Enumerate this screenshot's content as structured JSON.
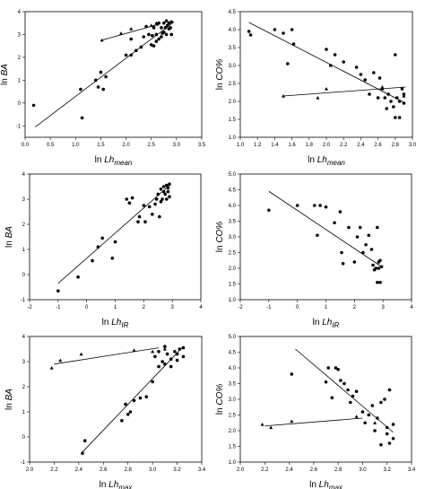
{
  "chart_data": [
    {
      "type": "scatter",
      "xlabel": "ln Lhmean",
      "xlabel_parts": {
        "main": "ln ",
        "italic": "Lh",
        "sub": "mean"
      },
      "ylabel": "ln BA",
      "ylabel_parts": {
        "main": "ln ",
        "italic": "BA"
      },
      "xlim": [
        0.0,
        3.5
      ],
      "ylim": [
        -1.5,
        4.0
      ],
      "xticks": [
        "0.0",
        "0.5",
        "1.0",
        "1.5",
        "2.0",
        "2.5",
        "3.0",
        "3.5"
      ],
      "yticks": [
        "-1",
        "0",
        "1",
        "2",
        "3",
        "4"
      ],
      "ytick_values": [
        -1,
        0,
        1,
        2,
        3,
        4
      ],
      "series": [
        {
          "marker": "circle",
          "x": [
            0.17,
            1.1,
            1.13,
            1.4,
            1.45,
            1.5,
            1.55,
            1.6,
            2.0,
            2.1,
            2.1,
            2.2,
            2.3,
            2.35,
            2.4,
            2.45,
            2.5,
            2.52,
            2.55,
            2.55,
            2.6,
            2.6,
            2.62,
            2.65,
            2.65,
            2.7,
            2.7,
            2.72,
            2.75,
            2.75,
            2.78,
            2.8,
            2.8,
            2.82,
            2.85,
            2.85,
            2.88,
            2.9,
            2.9
          ],
          "y": [
            -0.1,
            0.6,
            -0.65,
            1.0,
            0.7,
            1.35,
            0.6,
            1.15,
            2.1,
            2.8,
            2.1,
            2.3,
            2.45,
            2.9,
            3.35,
            3.0,
            2.55,
            2.95,
            2.5,
            3.3,
            2.7,
            3.0,
            3.45,
            2.8,
            3.5,
            2.9,
            3.3,
            3.05,
            3.1,
            3.5,
            3.3,
            3.0,
            3.6,
            3.4,
            3.25,
            3.5,
            3.3,
            3.0,
            3.55
          ]
        },
        {
          "marker": "triangle",
          "x": [
            1.52,
            1.9,
            2.1,
            2.5,
            2.55,
            2.6
          ],
          "y": [
            2.75,
            3.05,
            3.25,
            3.4,
            3.35,
            3.5
          ]
        }
      ],
      "fit_lines": [
        {
          "x": [
            0.2,
            2.95
          ],
          "y": [
            -1.05,
            3.55
          ]
        },
        {
          "x": [
            1.52,
            2.65
          ],
          "y": [
            2.75,
            3.45
          ]
        }
      ]
    },
    {
      "type": "scatter",
      "xlabel": "ln Lhmean",
      "xlabel_parts": {
        "main": "ln ",
        "italic": "Lh",
        "sub": "mean"
      },
      "ylabel": "ln CO%",
      "ylabel_parts": {
        "main": "ln ",
        "italic": "CO%"
      },
      "xlim": [
        1.0,
        3.0
      ],
      "ylim": [
        1.0,
        4.5
      ],
      "xticks": [
        "1.0",
        "1.2",
        "1.4",
        "1.6",
        "1.8",
        "2.0",
        "2.2",
        "2.4",
        "2.6",
        "2.8",
        "3.0"
      ],
      "yticks": [
        "1.0",
        "1.5",
        "2.0",
        "2.5",
        "3.0",
        "3.5",
        "4.0",
        "4.5"
      ],
      "ytick_values": [
        1.0,
        1.5,
        2.0,
        2.5,
        3.0,
        3.5,
        4.0,
        4.5
      ],
      "series": [
        {
          "marker": "circle",
          "x": [
            1.1,
            1.12,
            1.4,
            1.5,
            1.55,
            1.6,
            1.62,
            2.0,
            2.05,
            2.1,
            2.2,
            2.35,
            2.4,
            2.45,
            2.5,
            2.55,
            2.6,
            2.62,
            2.65,
            2.68,
            2.7,
            2.72,
            2.75,
            2.78,
            2.8,
            2.8,
            2.82,
            2.85,
            2.85,
            2.88,
            2.9,
            2.9
          ],
          "y": [
            3.95,
            3.85,
            4.0,
            3.9,
            3.05,
            4.0,
            3.6,
            3.45,
            3.0,
            3.3,
            3.1,
            2.95,
            2.75,
            2.6,
            2.2,
            2.8,
            2.1,
            2.65,
            2.35,
            2.1,
            1.8,
            2.2,
            2.0,
            1.85,
            3.3,
            1.55,
            2.1,
            2.0,
            1.55,
            2.35,
            2.2,
            1.95
          ]
        },
        {
          "marker": "triangle",
          "x": [
            1.5,
            1.9,
            2.0,
            2.65,
            2.9
          ],
          "y": [
            2.15,
            2.1,
            2.35,
            2.4,
            2.15
          ]
        }
      ],
      "fit_lines": [
        {
          "x": [
            1.1,
            2.92
          ],
          "y": [
            4.2,
            1.95
          ]
        },
        {
          "x": [
            1.5,
            2.92
          ],
          "y": [
            2.15,
            2.4
          ]
        }
      ]
    },
    {
      "type": "scatter",
      "xlabel": "ln LhIR",
      "xlabel_parts": {
        "main": "ln ",
        "italic": "Lh",
        "sub": "IR"
      },
      "ylabel": "ln BA",
      "ylabel_parts": {
        "main": "ln ",
        "italic": "BA"
      },
      "xlim": [
        -2,
        4
      ],
      "ylim": [
        -1,
        4
      ],
      "xticks": [
        "-2",
        "-1",
        "0",
        "1",
        "2",
        "3",
        "4"
      ],
      "yticks": [
        "-1",
        "0",
        "1",
        "2",
        "3",
        "4"
      ],
      "ytick_values": [
        -1,
        0,
        1,
        2,
        3,
        4
      ],
      "series": [
        {
          "marker": "circle",
          "x": [
            -1.0,
            -0.3,
            0.2,
            0.4,
            0.55,
            0.9,
            1.0,
            1.4,
            1.5,
            1.6,
            1.8,
            1.85,
            2.0,
            2.05,
            2.2,
            2.3,
            2.4,
            2.45,
            2.5,
            2.55,
            2.6,
            2.6,
            2.65,
            2.7,
            2.7,
            2.75,
            2.8,
            2.8,
            2.85,
            2.85,
            2.9,
            2.9
          ],
          "y": [
            -0.65,
            -0.1,
            0.55,
            1.1,
            1.45,
            0.65,
            1.3,
            3.0,
            2.85,
            3.05,
            2.1,
            2.3,
            2.75,
            2.1,
            2.7,
            2.4,
            2.8,
            3.0,
            3.2,
            2.3,
            3.4,
            2.9,
            3.0,
            3.3,
            3.5,
            3.2,
            3.55,
            3.0,
            3.45,
            3.3,
            3.6,
            3.1
          ]
        }
      ],
      "fit_lines": [
        {
          "x": [
            -1.0,
            2.95
          ],
          "y": [
            -0.35,
            3.6
          ]
        }
      ]
    },
    {
      "type": "scatter",
      "xlabel": "ln LhIR",
      "xlabel_parts": {
        "main": "ln ",
        "italic": "Lh",
        "sub": "IR"
      },
      "ylabel": "ln CO%",
      "ylabel_parts": {
        "main": "ln ",
        "italic": "CO%"
      },
      "xlim": [
        -2,
        4
      ],
      "ylim": [
        1.0,
        5.0
      ],
      "xticks": [
        "-2",
        "-1",
        "0",
        "1",
        "2",
        "3",
        "4"
      ],
      "yticks": [
        "1.0",
        "1.5",
        "2.0",
        "2.5",
        "3.0",
        "3.5",
        "4.0",
        "4.5",
        "5.0"
      ],
      "ytick_values": [
        1.0,
        1.5,
        2.0,
        2.5,
        3.0,
        3.5,
        4.0,
        4.5,
        5.0
      ],
      "series": [
        {
          "marker": "circle",
          "x": [
            -1.0,
            0.0,
            0.6,
            0.7,
            0.8,
            1.0,
            1.3,
            1.5,
            1.55,
            1.6,
            1.8,
            2.0,
            2.1,
            2.2,
            2.3,
            2.4,
            2.5,
            2.6,
            2.65,
            2.7,
            2.75,
            2.8,
            2.8,
            2.85,
            2.85,
            2.9,
            2.9,
            2.95
          ],
          "y": [
            3.85,
            4.0,
            4.0,
            3.05,
            4.0,
            3.95,
            3.45,
            3.8,
            2.5,
            2.15,
            3.3,
            2.2,
            3.0,
            3.3,
            2.5,
            2.75,
            3.05,
            2.6,
            2.1,
            1.95,
            2.0,
            3.3,
            1.55,
            2.2,
            2.0,
            1.55,
            2.25,
            2.05
          ]
        }
      ],
      "fit_lines": [
        {
          "x": [
            -1.0,
            2.95
          ],
          "y": [
            4.45,
            2.05
          ]
        }
      ]
    },
    {
      "type": "scatter",
      "xlabel": "ln Lhmax",
      "xlabel_parts": {
        "main": "ln ",
        "italic": "Lh",
        "sub": "max"
      },
      "ylabel": "ln BA",
      "ylabel_parts": {
        "main": "ln ",
        "italic": "BA"
      },
      "xlim": [
        2.0,
        3.4
      ],
      "ylim": [
        -1,
        4
      ],
      "xticks": [
        "2.0",
        "2.2",
        "2.4",
        "2.6",
        "2.8",
        "3.0",
        "3.2",
        "3.4"
      ],
      "yticks": [
        "-1",
        "0",
        "1",
        "2",
        "3",
        "4"
      ],
      "ytick_values": [
        -1,
        0,
        1,
        2,
        3,
        4
      ],
      "series": [
        {
          "marker": "circle",
          "x": [
            2.43,
            2.45,
            2.75,
            2.78,
            2.8,
            2.82,
            2.85,
            2.9,
            2.95,
            3.0,
            3.02,
            3.05,
            3.05,
            3.08,
            3.1,
            3.1,
            3.12,
            3.15,
            3.15,
            3.18,
            3.2,
            3.2,
            3.22,
            3.25,
            3.25
          ],
          "y": [
            -0.65,
            -0.15,
            0.65,
            1.3,
            0.9,
            1.0,
            1.45,
            1.55,
            1.6,
            2.2,
            3.2,
            2.8,
            3.4,
            3.0,
            3.6,
            2.9,
            3.3,
            3.1,
            2.8,
            3.4,
            3.3,
            3.05,
            3.5,
            3.2,
            3.55
          ]
        },
        {
          "marker": "triangle",
          "x": [
            2.18,
            2.25,
            2.42,
            2.85,
            3.0,
            3.1
          ],
          "y": [
            2.75,
            3.05,
            3.3,
            3.45,
            3.4,
            3.5
          ]
        }
      ],
      "fit_lines": [
        {
          "x": [
            2.43,
            3.25
          ],
          "y": [
            -0.6,
            3.6
          ]
        },
        {
          "x": [
            2.2,
            3.05
          ],
          "y": [
            2.9,
            3.55
          ]
        }
      ]
    },
    {
      "type": "scatter",
      "xlabel": "ln Lhmax",
      "xlabel_parts": {
        "main": "ln ",
        "italic": "Lh",
        "sub": "max"
      },
      "ylabel": "ln CO%",
      "ylabel_parts": {
        "main": "ln ",
        "italic": "CO%"
      },
      "xlim": [
        2.0,
        3.4
      ],
      "ylim": [
        1.0,
        5.0
      ],
      "xticks": [
        "2.0",
        "2.2",
        "2.4",
        "2.6",
        "2.8",
        "3.0",
        "3.2",
        "3.4"
      ],
      "yticks": [
        "1.0",
        "1.5",
        "2.0",
        "2.5",
        "3.0",
        "3.5",
        "4.0",
        "4.5",
        "5.0"
      ],
      "ytick_values": [
        1.0,
        1.5,
        2.0,
        2.5,
        3.0,
        3.5,
        4.0,
        4.5,
        5.0
      ],
      "series": [
        {
          "marker": "circle",
          "x": [
            2.42,
            2.7,
            2.72,
            2.75,
            2.78,
            2.8,
            2.82,
            2.85,
            2.88,
            2.9,
            2.92,
            2.95,
            3.0,
            3.02,
            3.05,
            3.08,
            3.1,
            3.12,
            3.15,
            3.15,
            3.18,
            3.2,
            3.2,
            3.22,
            3.22,
            3.25,
            3.25
          ],
          "y": [
            3.8,
            3.55,
            4.0,
            3.05,
            4.0,
            3.95,
            3.6,
            3.5,
            3.3,
            2.9,
            3.1,
            3.25,
            2.6,
            2.25,
            2.5,
            2.8,
            2.0,
            2.4,
            1.55,
            2.9,
            3.0,
            2.1,
            1.9,
            3.3,
            1.6,
            2.2,
            1.75
          ]
        },
        {
          "marker": "triangle",
          "x": [
            2.18,
            2.25,
            2.42,
            2.95,
            3.1
          ],
          "y": [
            2.2,
            2.1,
            2.3,
            2.45,
            2.25
          ]
        }
      ],
      "fit_lines": [
        {
          "x": [
            2.45,
            3.25
          ],
          "y": [
            4.6,
            1.95
          ]
        },
        {
          "x": [
            2.2,
            3.0
          ],
          "y": [
            2.15,
            2.4
          ]
        }
      ]
    }
  ]
}
